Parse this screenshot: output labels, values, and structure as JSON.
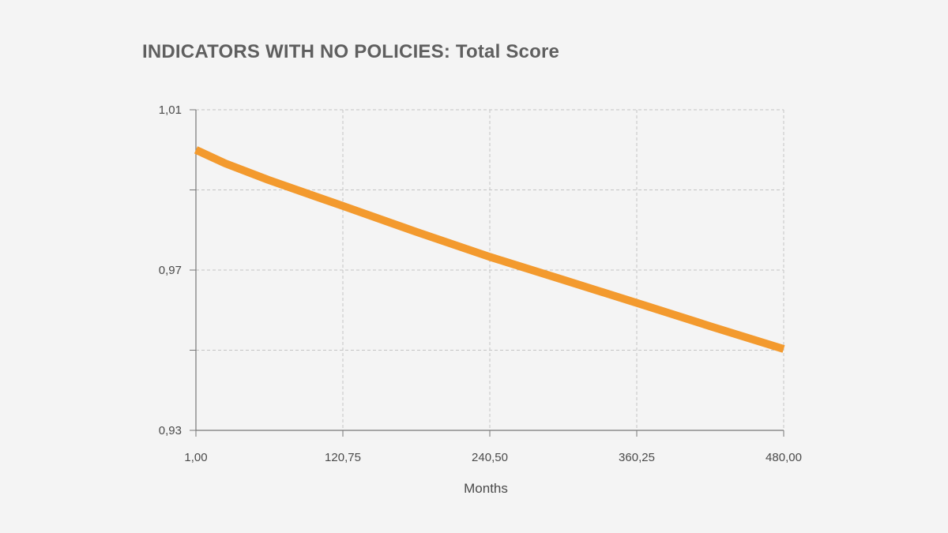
{
  "chart_data": {
    "type": "line",
    "title": "INDICATORS WITH NO POLICIES: Total Score",
    "xlabel": "Months",
    "ylabel": "",
    "xlim": [
      1.0,
      480.0
    ],
    "ylim": [
      0.93,
      1.01
    ],
    "x_ticks": [
      1.0,
      120.75,
      240.5,
      360.25,
      480.0
    ],
    "x_tick_labels": [
      "1,00",
      "120,75",
      "240,50",
      "360,25",
      "480,00"
    ],
    "y_ticks": [
      0.93,
      0.97,
      1.01
    ],
    "y_tick_labels": [
      "0,93",
      "0,97",
      "1,01"
    ],
    "y_gridlines": [
      0.93,
      0.95,
      0.97,
      0.99,
      1.01
    ],
    "grid": true,
    "series": [
      {
        "color": "#f39a2e",
        "x": [
          1,
          25,
          60,
          100,
          120.75,
          180,
          240.5,
          300,
          360.25,
          420,
          480
        ],
        "y": [
          1.0,
          0.9966,
          0.9925,
          0.9882,
          0.986,
          0.9796,
          0.9733,
          0.9676,
          0.9618,
          0.956,
          0.9503
        ]
      }
    ]
  }
}
